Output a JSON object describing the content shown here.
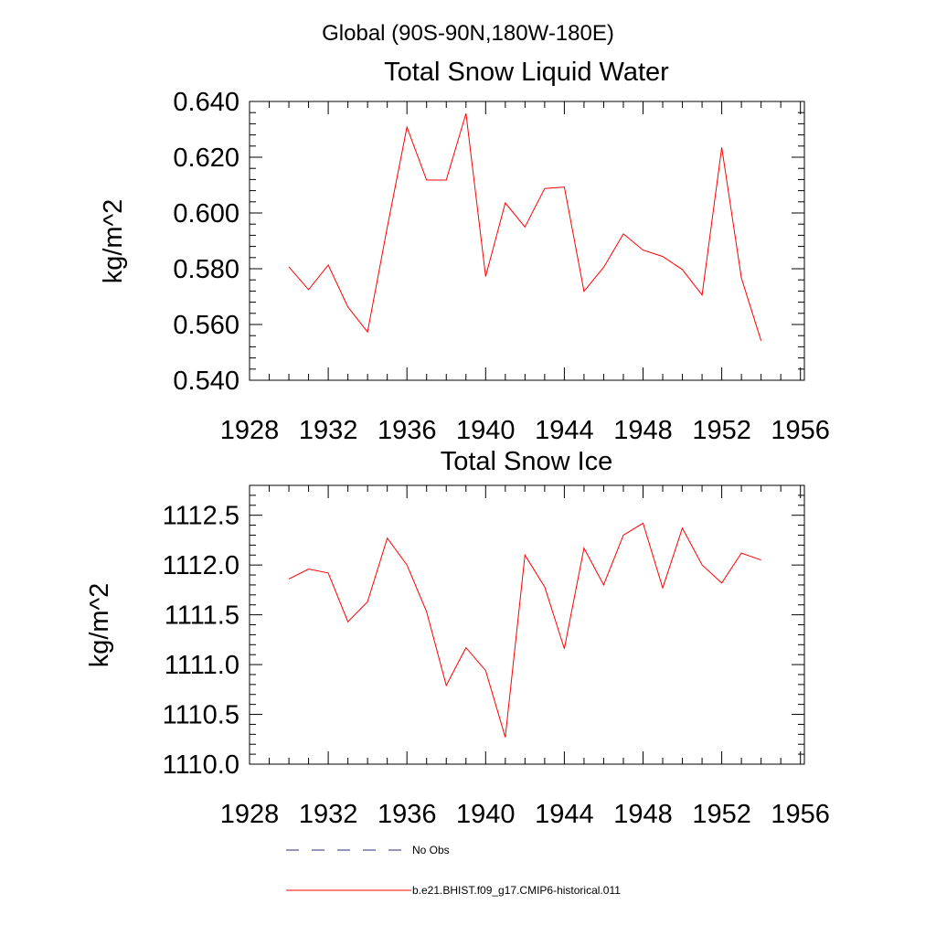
{
  "suptitle": "Global (90S-90N,180W-180E)",
  "chart_data": [
    {
      "type": "line",
      "title": "Total Snow Liquid Water",
      "xlabel": "",
      "ylabel": "kg/m^2",
      "xlim": [
        1928,
        1956.2
      ],
      "ylim": [
        0.54,
        0.64
      ],
      "x_ticks": [
        1928,
        1932,
        1936,
        1940,
        1944,
        1948,
        1952,
        1956
      ],
      "x_tick_labels": [
        "1928",
        "1932",
        "1936",
        "1940",
        "1944",
        "1948",
        "1952",
        "1956"
      ],
      "y_ticks": [
        0.54,
        0.56,
        0.58,
        0.6,
        0.62,
        0.64
      ],
      "y_tick_labels": [
        "0.540",
        "0.560",
        "0.580",
        "0.600",
        "0.620",
        "0.640"
      ],
      "grid": false,
      "series": [
        {
          "name": "b.e21.BHIST.f09_g17.CMIP6-historical.011",
          "color": "#ff0000",
          "x": [
            1930,
            1931,
            1932,
            1933,
            1934,
            1935,
            1936,
            1937,
            1938,
            1939,
            1940,
            1941,
            1942,
            1943,
            1944,
            1945,
            1946,
            1947,
            1948,
            1949,
            1950,
            1951,
            1952,
            1953,
            1954
          ],
          "values": [
            0.5807,
            0.5725,
            0.5813,
            0.5663,
            0.5573,
            0.5949,
            0.6308,
            0.6118,
            0.6118,
            0.6357,
            0.5772,
            0.6036,
            0.595,
            0.6088,
            0.6093,
            0.5719,
            0.5805,
            0.5925,
            0.5867,
            0.5844,
            0.5797,
            0.5706,
            0.6235,
            0.5767,
            0.5542
          ]
        }
      ]
    },
    {
      "type": "line",
      "title": "Total Snow Ice",
      "xlabel": "",
      "ylabel": "kg/m^2",
      "xlim": [
        1928,
        1956.2
      ],
      "ylim": [
        1110.0,
        1112.8
      ],
      "x_ticks": [
        1928,
        1932,
        1936,
        1940,
        1944,
        1948,
        1952,
        1956
      ],
      "x_tick_labels": [
        "1928",
        "1932",
        "1936",
        "1940",
        "1944",
        "1948",
        "1952",
        "1956"
      ],
      "y_ticks": [
        1110.0,
        1110.5,
        1111.0,
        1111.5,
        1112.0,
        1112.5
      ],
      "y_tick_labels": [
        "1110.0",
        "1110.5",
        "1111.0",
        "1111.5",
        "1112.0",
        "1112.5"
      ],
      "grid": false,
      "series": [
        {
          "name": "b.e21.BHIST.f09_g17.CMIP6-historical.011",
          "color": "#ff0000",
          "x": [
            1930,
            1931,
            1932,
            1933,
            1934,
            1935,
            1936,
            1937,
            1938,
            1939,
            1940,
            1941,
            1942,
            1943,
            1944,
            1945,
            1946,
            1947,
            1948,
            1949,
            1950,
            1951,
            1952,
            1953,
            1954
          ],
          "values": [
            1111.86,
            1111.96,
            1111.92,
            1111.43,
            1111.63,
            1112.27,
            1112.0,
            1111.53,
            1110.79,
            1111.17,
            1110.94,
            1110.27,
            1112.1,
            1111.78,
            1111.16,
            1112.17,
            1111.8,
            1112.3,
            1112.42,
            1111.77,
            1112.37,
            1112.0,
            1111.82,
            1112.12,
            1112.05
          ]
        }
      ]
    }
  ],
  "legend": {
    "placement": "bottom",
    "entries": [
      {
        "label": "No Obs",
        "style": "dashed",
        "color": "#2e2e7a"
      },
      {
        "label": "b.e21.BHIST.f09_g17.CMIP6-historical.011",
        "style": "solid",
        "color": "#ff0000"
      }
    ]
  }
}
